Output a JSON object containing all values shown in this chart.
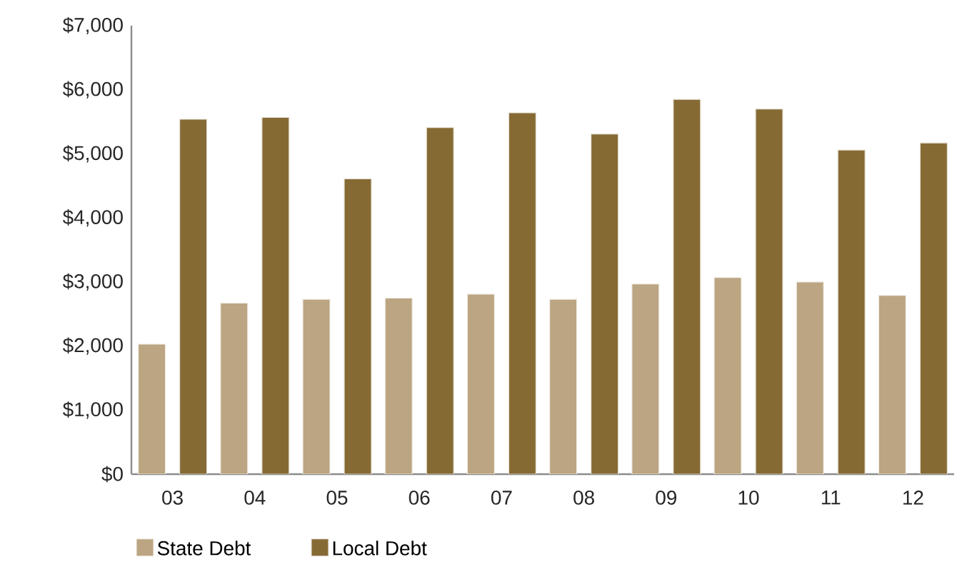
{
  "chart_data": {
    "type": "bar",
    "categories": [
      "03",
      "04",
      "05",
      "06",
      "07",
      "08",
      "09",
      "10",
      "11",
      "12"
    ],
    "series": [
      {
        "name": "State Debt",
        "color": "#bba582",
        "values": [
          2030,
          2670,
          2730,
          2750,
          2810,
          2730,
          2970,
          3070,
          3000,
          2790
        ]
      },
      {
        "name": "Local Debt",
        "color": "#866a34",
        "values": [
          5540,
          5570,
          4610,
          5410,
          5640,
          5310,
          5850,
          5700,
          5060,
          5170
        ]
      }
    ],
    "ylim": [
      0,
      7000
    ],
    "yticks": [
      {
        "value": 0,
        "label": "$0"
      },
      {
        "value": 1000,
        "label": "$1,000"
      },
      {
        "value": 2000,
        "label": "$2,000"
      },
      {
        "value": 3000,
        "label": "$3,000"
      },
      {
        "value": 4000,
        "label": "$4,000"
      },
      {
        "value": 5000,
        "label": "$5,000"
      },
      {
        "value": 6000,
        "label": "$6,000"
      },
      {
        "value": 7000,
        "label": "$7,000"
      }
    ],
    "grid": false,
    "legend": "bottom"
  }
}
